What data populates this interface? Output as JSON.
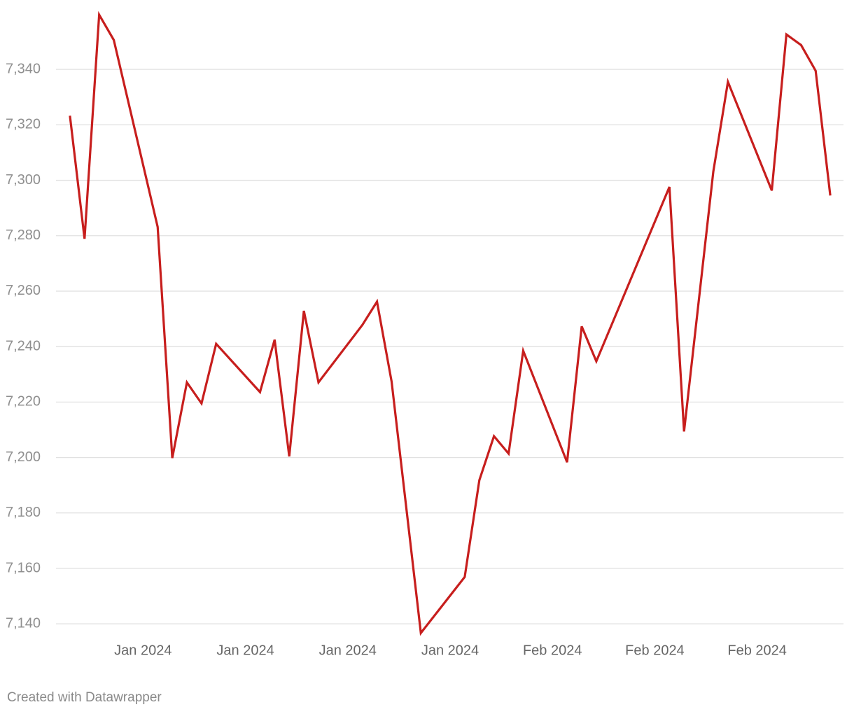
{
  "chart_data": {
    "type": "line",
    "x": [
      0,
      1,
      2,
      3,
      6,
      7,
      8,
      9,
      10,
      13,
      14,
      15,
      16,
      17,
      20,
      21,
      22,
      24,
      27,
      28,
      29,
      30,
      31,
      34,
      35,
      36,
      41,
      42,
      44,
      45,
      48,
      49,
      50,
      51,
      52
    ],
    "values": [
      7323.3,
      7278.9,
      7359.7,
      7350.6,
      7283.2,
      7199.8,
      7227.1,
      7219.5,
      7241.0,
      7223.6,
      7242.5,
      7200.4,
      7252.9,
      7227.1,
      7247.8,
      7256.2,
      7227.4,
      7136.7,
      7156.9,
      7191.8,
      7207.7,
      7201.4,
      7238.5,
      7198.3,
      7247.3,
      7234.7,
      7297.6,
      7209.4,
      7303.1,
      7335.5,
      7296.3,
      7352.6,
      7348.8,
      7339.5,
      7294.5
    ],
    "color": "#c71e1d",
    "xlim": [
      -1,
      53
    ],
    "xticks": [
      {
        "value": 5,
        "label": "Jan 2024"
      },
      {
        "value": 12,
        "label": "Jan 2024"
      },
      {
        "value": 19,
        "label": "Jan 2024"
      },
      {
        "value": 26,
        "label": "Jan 2024"
      },
      {
        "value": 33,
        "label": "Feb 2024"
      },
      {
        "value": 40,
        "label": "Feb 2024"
      },
      {
        "value": 47,
        "label": "Feb 2024"
      }
    ],
    "ylim": [
      7135,
      7362
    ],
    "yticks": [
      {
        "value": 7140,
        "label": "7,140"
      },
      {
        "value": 7160,
        "label": "7,160"
      },
      {
        "value": 7180,
        "label": "7,180"
      },
      {
        "value": 7200,
        "label": "7,200"
      },
      {
        "value": 7220,
        "label": "7,220"
      },
      {
        "value": 7240,
        "label": "7,240"
      },
      {
        "value": 7260,
        "label": "7,260"
      },
      {
        "value": 7280,
        "label": "7,280"
      },
      {
        "value": 7300,
        "label": "7,300"
      },
      {
        "value": 7320,
        "label": "7,320"
      },
      {
        "value": 7340,
        "label": "7,340"
      }
    ],
    "grid": true
  },
  "footer": "Created with Datawrapper"
}
